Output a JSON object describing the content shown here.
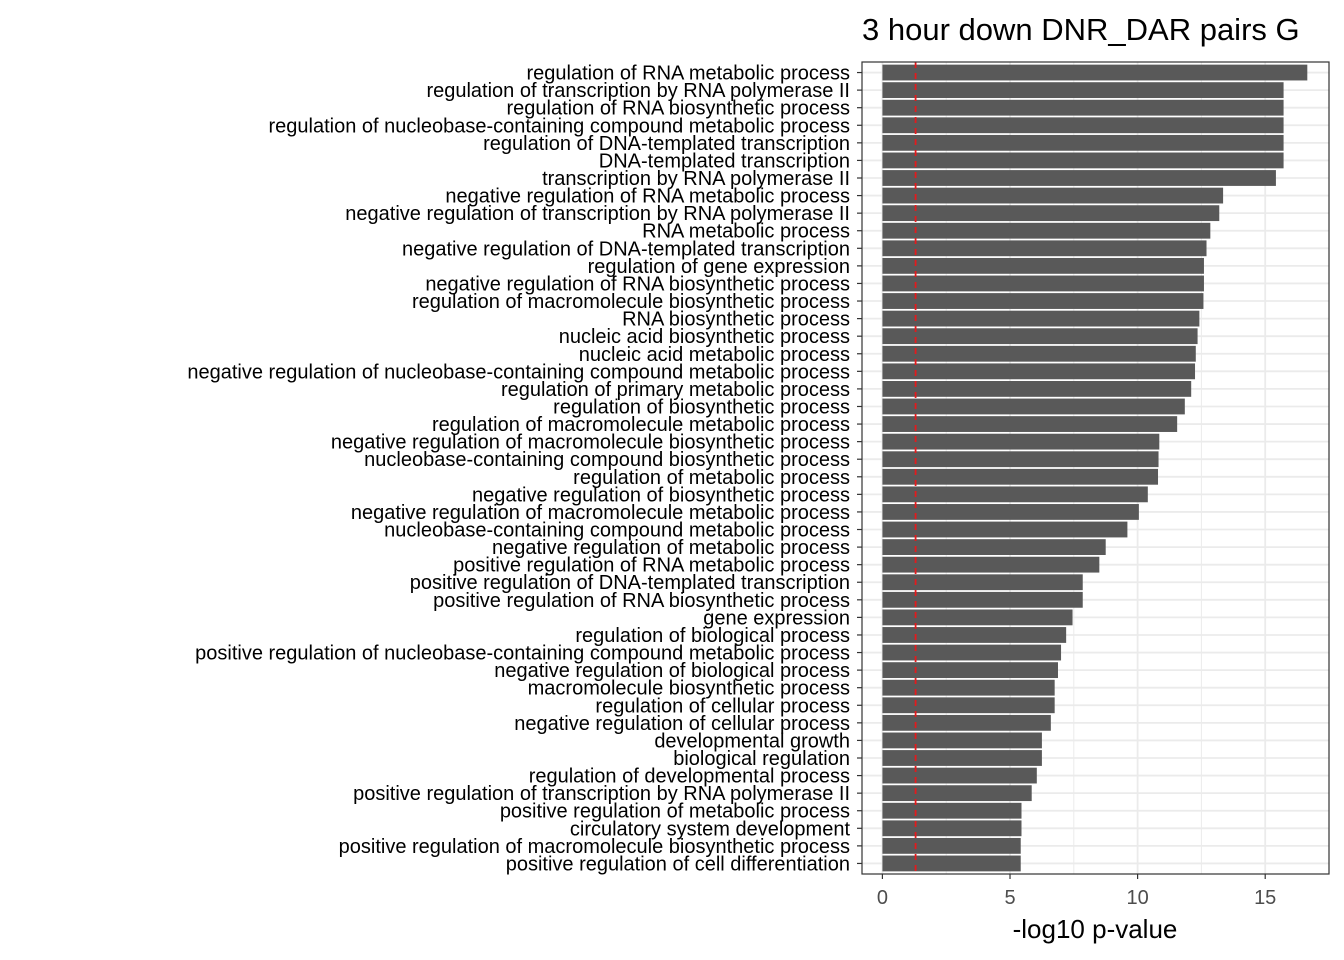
{
  "chart_data": {
    "type": "bar",
    "orientation": "horizontal",
    "title": "3 hour down DNR_DAR pairs G",
    "xlabel": "-log10 p-value",
    "ylabel": "",
    "xlim": [
      -0.8,
      17.5
    ],
    "xticks": [
      0,
      5,
      10,
      15
    ],
    "grid": true,
    "reference_line": 1.3,
    "colors": {
      "bar": "#595959",
      "reference_line": "#e41a1c",
      "grid": "#ebebeb",
      "panel_border": "#333333"
    },
    "categories": [
      "regulation of RNA metabolic process",
      "regulation of transcription by RNA polymerase II",
      "regulation of RNA biosynthetic process",
      "regulation of nucleobase-containing compound metabolic process",
      "regulation of DNA-templated transcription",
      "DNA-templated transcription",
      "transcription by RNA polymerase II",
      "negative regulation of RNA metabolic process",
      "negative regulation of transcription by RNA polymerase II",
      "RNA metabolic process",
      "negative regulation of DNA-templated transcription",
      "regulation of gene expression",
      "negative regulation of RNA biosynthetic process",
      "regulation of macromolecule biosynthetic process",
      "RNA biosynthetic process",
      "nucleic acid biosynthetic process",
      "nucleic acid metabolic process",
      "negative regulation of nucleobase-containing compound metabolic process",
      "regulation of primary metabolic process",
      "regulation of biosynthetic process",
      "regulation of macromolecule metabolic process",
      "negative regulation of macromolecule biosynthetic process",
      "nucleobase-containing compound biosynthetic process",
      "regulation of metabolic process",
      "negative regulation of biosynthetic process",
      "negative regulation of macromolecule metabolic process",
      "nucleobase-containing compound metabolic process",
      "negative regulation of metabolic process",
      "positive regulation of RNA metabolic process",
      "positive regulation of DNA-templated transcription",
      "positive regulation of RNA biosynthetic process",
      "gene expression",
      "regulation of biological process",
      "positive regulation of nucleobase-containing compound metabolic process",
      "negative regulation of biological process",
      "macromolecule biosynthetic process",
      "regulation of cellular process",
      "negative regulation of cellular process",
      "developmental growth",
      "biological regulation",
      "regulation of developmental process",
      "positive regulation of transcription by RNA polymerase II",
      "positive regulation of metabolic process",
      "circulatory system development",
      "positive regulation of macromolecule biosynthetic process",
      "positive regulation of cell differentiation"
    ],
    "values": [
      16.65,
      15.72,
      15.72,
      15.72,
      15.72,
      15.72,
      15.42,
      13.35,
      13.2,
      12.85,
      12.7,
      12.6,
      12.6,
      12.58,
      12.42,
      12.35,
      12.28,
      12.25,
      12.1,
      11.85,
      11.55,
      10.85,
      10.82,
      10.8,
      10.4,
      10.05,
      9.6,
      8.75,
      8.5,
      7.85,
      7.85,
      7.45,
      7.2,
      7.0,
      6.88,
      6.75,
      6.75,
      6.6,
      6.25,
      6.25,
      6.05,
      5.85,
      5.45,
      5.45,
      5.42,
      5.42
    ]
  }
}
